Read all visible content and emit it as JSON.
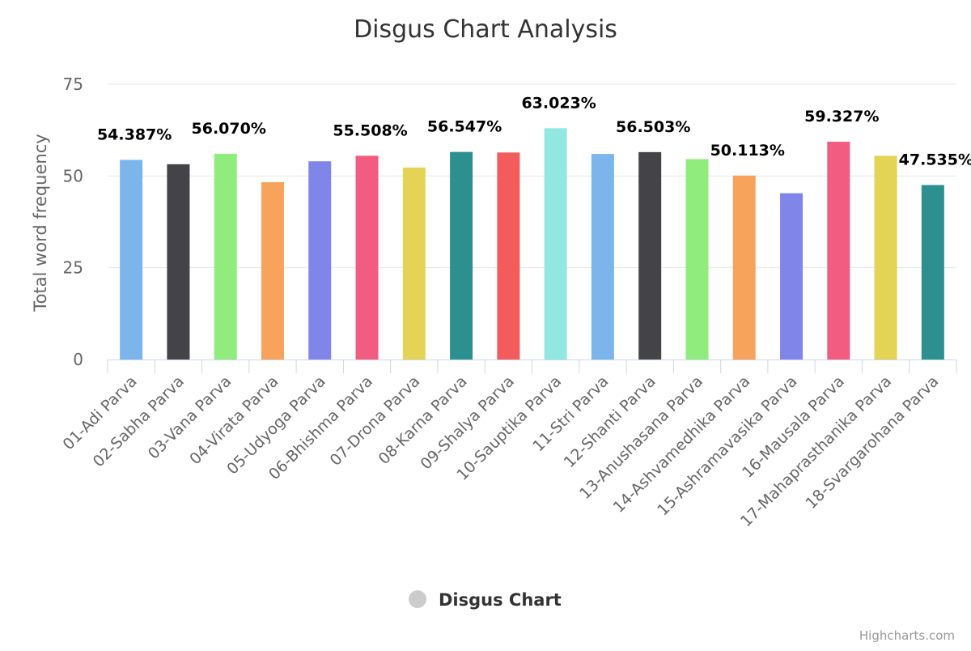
{
  "credits": "Highcharts.com",
  "chart_data": {
    "type": "bar",
    "title": "Disgus Chart Analysis",
    "xlabel": "",
    "ylabel": "Total word frequency",
    "ylim": [
      0,
      75
    ],
    "yticks": [
      0,
      25,
      50,
      75
    ],
    "grid": true,
    "legend_position": "bottom-center",
    "series": [
      {
        "name": "Disgus Chart",
        "values": [
          54.387,
          53.2,
          56.07,
          48.3,
          54.0,
          55.508,
          52.3,
          56.547,
          56.4,
          63.023,
          56.0,
          56.503,
          54.6,
          50.113,
          45.3,
          59.327,
          55.5,
          47.535
        ],
        "data_labels": [
          "54.387%",
          "",
          "56.070%",
          "",
          "",
          "55.508%",
          "",
          "56.547%",
          "",
          "63.023%",
          "",
          "56.503%",
          "",
          "50.113%",
          "",
          "59.327%",
          "",
          "47.535%"
        ]
      }
    ],
    "categories": [
      "01-Adi Parva",
      "02-Sabha Parva",
      "03-Vana Parva",
      "04-Virata Parva",
      "05-Udyoga Parva",
      "06-Bhishma Parva",
      "07-Drona Parva",
      "08-Karna Parva",
      "09-Shalya Parva",
      "10-Sauptika Parva",
      "11-Stri Parva",
      "12-Shanti Parva",
      "13-Anushasana Parva",
      "14-Ashvamedhika Parva",
      "15-Ashramavasika Parva",
      "16-Mausala Parva",
      "17-Mahaprasthanika Parva",
      "18-Svargarohana Parva"
    ],
    "colors": [
      "#7cb5ec",
      "#434348",
      "#90ed7d",
      "#f7a35c",
      "#8085e9",
      "#f15c80",
      "#e4d354",
      "#2b908f",
      "#f45b5b",
      "#91e8e1"
    ],
    "legend_symbol_color": "#cccccc"
  }
}
